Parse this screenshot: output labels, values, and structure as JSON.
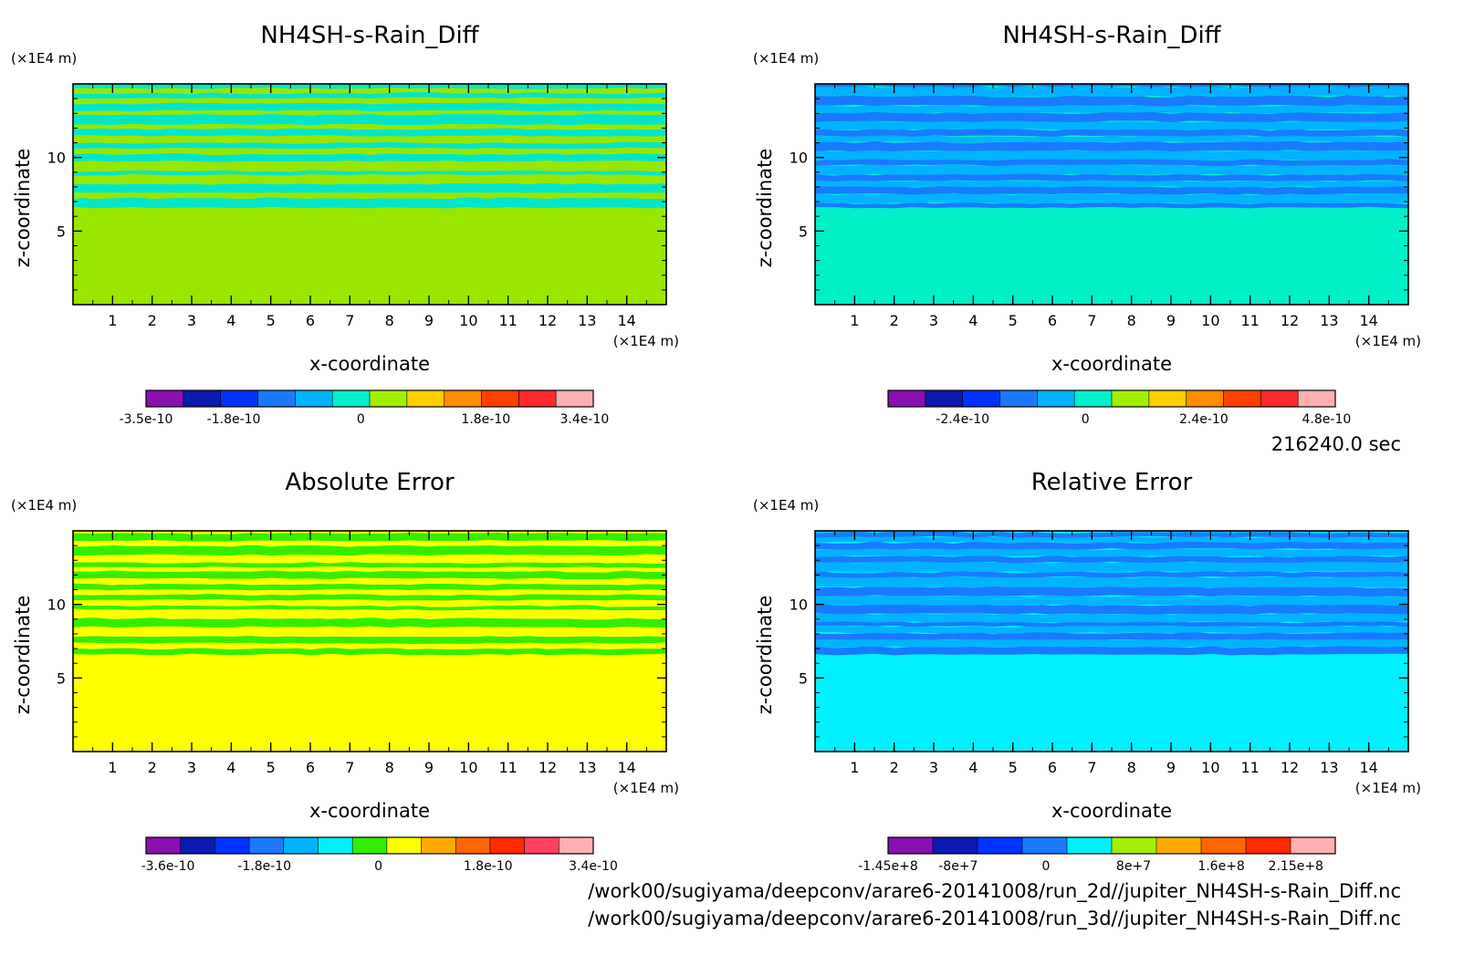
{
  "time_label": "216240.0 sec",
  "footer": {
    "line1": "/work00/sugiyama/deepconv/arare6-20141008/run_2d//jupiter_NH4SH-s-Rain_Diff.nc",
    "line2": "/work00/sugiyama/deepconv/arare6-20141008/run_3d//jupiter_NH4SH-s-Rain_Diff.nc"
  },
  "chart_data": [
    {
      "type": "heatmap",
      "title": "NH4SH-s-Rain_Diff",
      "xlabel": "x-coordinate",
      "ylabel": "z-coordinate",
      "x_unit": "(×1E4 m)",
      "y_unit": "(×1E4 m)",
      "xlim": [
        0,
        15
      ],
      "ylim": [
        0,
        15
      ],
      "xticks": [
        "1",
        "2",
        "3",
        "4",
        "5",
        "6",
        "7",
        "8",
        "9",
        "10",
        "11",
        "12",
        "13",
        "14"
      ],
      "yticks": [
        "5",
        "10"
      ],
      "background": "#99e600",
      "bands": [
        "#00e6cc",
        "#99e600"
      ],
      "colorbar": {
        "colors": [
          "#8a0fb0",
          "#0a1ab0",
          "#0033ff",
          "#1a7aff",
          "#00b3ff",
          "#00f0d0",
          "#a0f000",
          "#ffcc00",
          "#ff8c00",
          "#ff4000",
          "#ff2a2a",
          "#ffb0b0"
        ],
        "ticks": [
          "-3.5e-10",
          "-1.8e-10",
          "0",
          "1.8e-10",
          "3.4e-10"
        ],
        "tick_pos": [
          0,
          2,
          4.9,
          7.75,
          10
        ]
      }
    },
    {
      "type": "heatmap",
      "title": "NH4SH-s-Rain_Diff",
      "xlabel": "x-coordinate",
      "ylabel": "z-coordinate",
      "x_unit": "(×1E4 m)",
      "y_unit": "(×1E4 m)",
      "xlim": [
        0,
        15
      ],
      "ylim": [
        0,
        15
      ],
      "xticks": [
        "1",
        "2",
        "3",
        "4",
        "5",
        "6",
        "7",
        "8",
        "9",
        "10",
        "11",
        "12",
        "13",
        "14"
      ],
      "yticks": [
        "5",
        "10"
      ],
      "background": "#00f0c8",
      "bands": [
        "#1a7aff",
        "#00b3ff"
      ],
      "colorbar": {
        "colors": [
          "#8a0fb0",
          "#0a1ab0",
          "#0033ff",
          "#1a7aff",
          "#00b3ff",
          "#00f0d0",
          "#a0f000",
          "#ffcc00",
          "#ff8c00",
          "#ff4000",
          "#ff2a2a",
          "#ffb0b0"
        ],
        "ticks": [
          "-2.4e-10",
          "0",
          "2.4e-10",
          "4.8e-10"
        ],
        "tick_pos": [
          1.7,
          4.5,
          7.2,
          10
        ]
      }
    },
    {
      "type": "heatmap",
      "title": "Absolute Error",
      "xlabel": "x-coordinate",
      "ylabel": "z-coordinate",
      "x_unit": "(×1E4 m)",
      "y_unit": "(×1E4 m)",
      "xlim": [
        0,
        15
      ],
      "ylim": [
        0,
        15
      ],
      "xticks": [
        "1",
        "2",
        "3",
        "4",
        "5",
        "6",
        "7",
        "8",
        "9",
        "10",
        "11",
        "12",
        "13",
        "14"
      ],
      "yticks": [
        "5",
        "10"
      ],
      "background": "#ffff00",
      "bands": [
        "#33ee00",
        "#ffff00"
      ],
      "colorbar": {
        "colors": [
          "#8a0fb0",
          "#0a1ab0",
          "#0033ff",
          "#1a7aff",
          "#00b3ff",
          "#00f0ff",
          "#33ee00",
          "#ffff00",
          "#ffaa00",
          "#ff6600",
          "#ff2a00",
          "#ff4060",
          "#ffb0b0"
        ],
        "ticks": [
          "-3.6e-10",
          "-1.8e-10",
          "0",
          "1.8e-10",
          "3.4e-10"
        ],
        "tick_pos": [
          0.5,
          2.7,
          5.3,
          7.8,
          10.2
        ]
      }
    },
    {
      "type": "heatmap",
      "title": "Relative Error",
      "xlabel": "x-coordinate",
      "ylabel": "z-coordinate",
      "x_unit": "(×1E4 m)",
      "y_unit": "(×1E4 m)",
      "xlim": [
        0,
        15
      ],
      "ylim": [
        0,
        15
      ],
      "xticks": [
        "1",
        "2",
        "3",
        "4",
        "5",
        "6",
        "7",
        "8",
        "9",
        "10",
        "11",
        "12",
        "13",
        "14"
      ],
      "yticks": [
        "5",
        "10"
      ],
      "background": "#00f0ff",
      "bands": [
        "#1a7aff",
        "#00b3ff"
      ],
      "colorbar": {
        "colors": [
          "#8a0fb0",
          "#0a1ab0",
          "#0033ff",
          "#1a7aff",
          "#00f0ff",
          "#a0f000",
          "#ffaa00",
          "#ff6600",
          "#ff2a00",
          "#ffb0b0"
        ],
        "ticks": [
          "-1.45e+8",
          "-8e+7",
          "0",
          "8e+7",
          "1.6e+8",
          "2.15e+8"
        ],
        "tick_pos": [
          0,
          1.6,
          3.6,
          5.6,
          7.6,
          9.3
        ]
      }
    }
  ]
}
